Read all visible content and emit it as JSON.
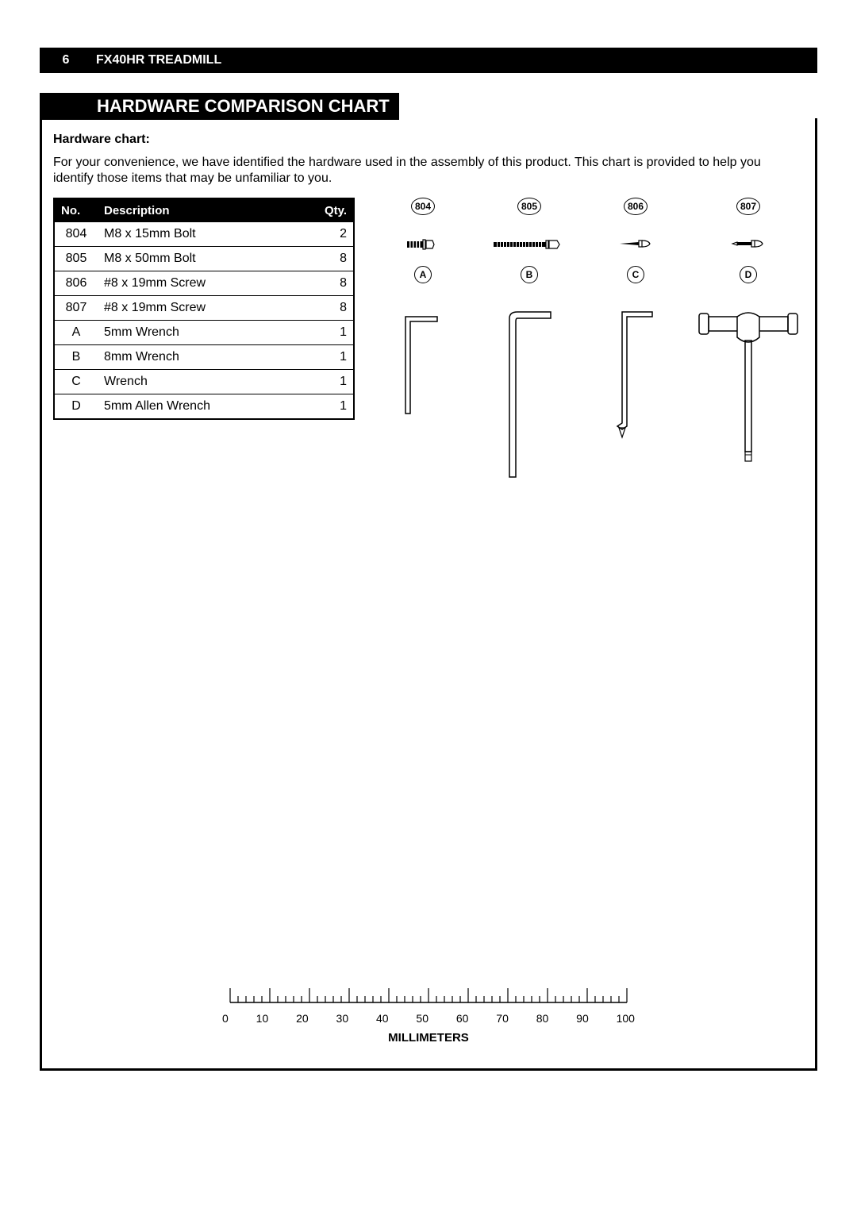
{
  "page_number": "6",
  "product_title": "FX40HR TREADMILL",
  "section_title": "HARDWARE COMPARISON CHART",
  "sub_heading": "Hardware chart:",
  "intro_text": "For your convenience, we have identified the hardware used in the assembly of this product.  This chart is provided to help you identify those items that may be unfamiliar to you.",
  "table": {
    "columns": [
      "No.",
      "Description",
      "Qty."
    ],
    "rows": [
      {
        "no": "804",
        "desc": "M8 x 15mm Bolt",
        "qty": "2"
      },
      {
        "no": "805",
        "desc": "M8 x 50mm Bolt",
        "qty": "8"
      },
      {
        "no": "806",
        "desc": "#8 x 19mm Screw",
        "qty": "8"
      },
      {
        "no": "807",
        "desc": "#8 x 19mm Screw",
        "qty": "8"
      },
      {
        "no": "A",
        "desc": "5mm Wrench",
        "qty": "1"
      },
      {
        "no": "B",
        "desc": "8mm Wrench",
        "qty": "1"
      },
      {
        "no": "C",
        "desc": "Wrench",
        "qty": "1"
      },
      {
        "no": "D",
        "desc": "5mm Allen Wrench",
        "qty": "1"
      }
    ]
  },
  "diagrams": {
    "row1": [
      "804",
      "805",
      "806",
      "807"
    ],
    "row2": [
      "A",
      "B",
      "C",
      "D"
    ]
  },
  "ruler": {
    "label": "MILLIMETERS",
    "major_ticks": [
      "0",
      "10",
      "20",
      "30",
      "40",
      "50",
      "60",
      "70",
      "80",
      "90",
      "100"
    ],
    "length_mm": 100,
    "minor_per_major": 5
  },
  "colors": {
    "ink": "#000000",
    "paper": "#ffffff"
  }
}
